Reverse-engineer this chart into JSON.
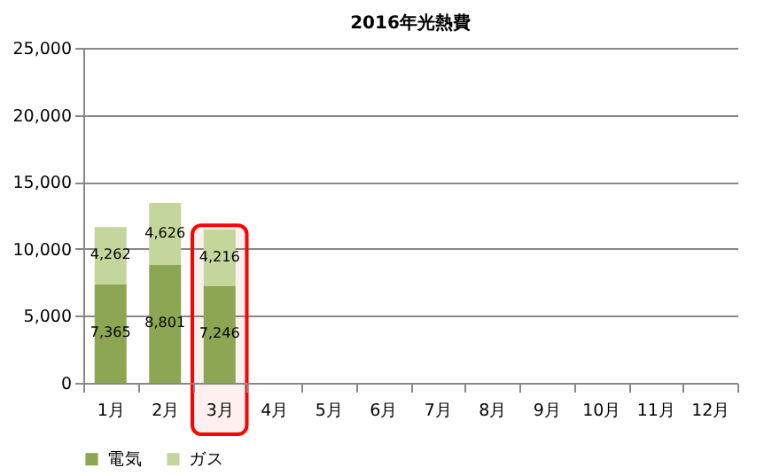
{
  "chart_data": {
    "type": "bar",
    "title": "2016年光熱費",
    "stacked": true,
    "grid": "y",
    "legend": "bottom",
    "categories": [
      "1月",
      "2月",
      "3月",
      "4月",
      "5月",
      "6月",
      "7月",
      "8月",
      "9月",
      "10月",
      "11月",
      "12月"
    ],
    "series": [
      {
        "name": "電気",
        "color": "#8da653",
        "values": [
          7365,
          8801,
          7246,
          null,
          null,
          null,
          null,
          null,
          null,
          null,
          null,
          null
        ],
        "value_labels": [
          "7,365",
          "8,801",
          "7,246",
          null,
          null,
          null,
          null,
          null,
          null,
          null,
          null,
          null
        ]
      },
      {
        "name": "ガス",
        "color": "#c3d69b",
        "values": [
          4262,
          4626,
          4216,
          null,
          null,
          null,
          null,
          null,
          null,
          null,
          null,
          null
        ],
        "value_labels": [
          "4,262",
          "4,626",
          "4,216",
          null,
          null,
          null,
          null,
          null,
          null,
          null,
          null,
          null
        ]
      }
    ],
    "ylim": [
      0,
      25000
    ],
    "yticks": [
      {
        "value": 0,
        "label": "0"
      },
      {
        "value": 5000,
        "label": "5,000"
      },
      {
        "value": 10000,
        "label": "10,000"
      },
      {
        "value": 15000,
        "label": "15,000"
      },
      {
        "value": 20000,
        "label": "20,000"
      },
      {
        "value": 25000,
        "label": "25,000"
      }
    ],
    "bands": [
      {
        "axis": "x",
        "from": "3月",
        "to": "3月",
        "color": "#ff0000"
      }
    ]
  }
}
